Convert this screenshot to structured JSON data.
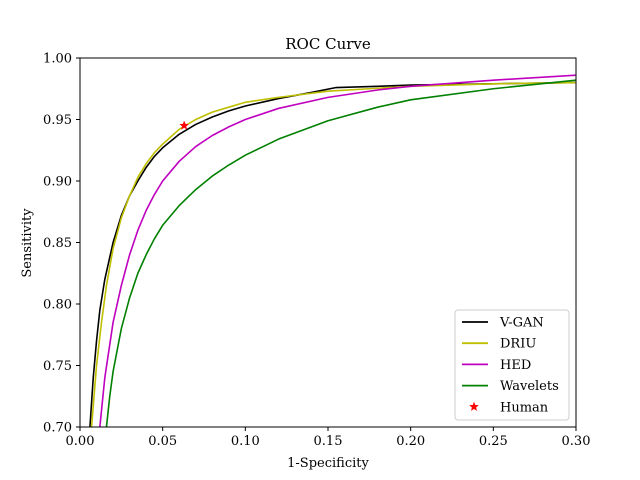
{
  "chart_data": {
    "type": "line",
    "title": "ROC Curve",
    "xlabel": "1-Specificity",
    "ylabel": "Sensitivity",
    "xlim": [
      0.0,
      0.3
    ],
    "ylim": [
      0.7,
      1.0
    ],
    "xticks": [
      0.0,
      0.05,
      0.1,
      0.15,
      0.2,
      0.25,
      0.3
    ],
    "yticks": [
      0.7,
      0.75,
      0.8,
      0.85,
      0.9,
      0.95,
      1.0
    ],
    "xtick_labels": [
      "0.00",
      "0.05",
      "0.10",
      "0.15",
      "0.20",
      "0.25",
      "0.30"
    ],
    "ytick_labels": [
      "0.70",
      "0.75",
      "0.80",
      "0.85",
      "0.90",
      "0.95",
      "1.00"
    ],
    "grid": false,
    "legend_position": "bottom-right",
    "series": [
      {
        "name": "V-GAN",
        "color": "#000000",
        "marker": "none",
        "x": [
          0.006,
          0.008,
          0.01,
          0.012,
          0.015,
          0.02,
          0.025,
          0.03,
          0.035,
          0.04,
          0.045,
          0.05,
          0.06,
          0.07,
          0.08,
          0.09,
          0.1,
          0.12,
          0.14,
          0.155,
          0.18,
          0.2,
          0.25,
          0.3
        ],
        "y": [
          0.7,
          0.74,
          0.77,
          0.795,
          0.82,
          0.85,
          0.872,
          0.888,
          0.9,
          0.911,
          0.92,
          0.927,
          0.938,
          0.946,
          0.952,
          0.957,
          0.961,
          0.967,
          0.972,
          0.976,
          0.977,
          0.978,
          0.979,
          0.98
        ]
      },
      {
        "name": "DRIU",
        "color": "#bfbf00",
        "marker": "none",
        "x": [
          0.007,
          0.01,
          0.013,
          0.016,
          0.02,
          0.025,
          0.03,
          0.035,
          0.04,
          0.045,
          0.05,
          0.06,
          0.07,
          0.08,
          0.09,
          0.1,
          0.12,
          0.15,
          0.2,
          0.25,
          0.3
        ],
        "y": [
          0.7,
          0.75,
          0.785,
          0.815,
          0.845,
          0.87,
          0.888,
          0.903,
          0.914,
          0.923,
          0.93,
          0.942,
          0.95,
          0.956,
          0.96,
          0.964,
          0.968,
          0.973,
          0.977,
          0.979,
          0.98
        ]
      },
      {
        "name": "HED",
        "color": "#bf00bf",
        "marker": "none",
        "x": [
          0.012,
          0.015,
          0.02,
          0.025,
          0.03,
          0.035,
          0.04,
          0.045,
          0.05,
          0.06,
          0.07,
          0.08,
          0.09,
          0.1,
          0.12,
          0.15,
          0.18,
          0.2,
          0.25,
          0.3
        ],
        "y": [
          0.7,
          0.74,
          0.785,
          0.815,
          0.84,
          0.86,
          0.876,
          0.889,
          0.9,
          0.916,
          0.928,
          0.937,
          0.944,
          0.95,
          0.959,
          0.968,
          0.974,
          0.977,
          0.982,
          0.986
        ]
      },
      {
        "name": "Wavelets",
        "color": "#008000",
        "marker": "none",
        "x": [
          0.016,
          0.018,
          0.02,
          0.025,
          0.03,
          0.035,
          0.04,
          0.045,
          0.05,
          0.06,
          0.07,
          0.08,
          0.09,
          0.1,
          0.12,
          0.15,
          0.18,
          0.2,
          0.25,
          0.3
        ],
        "y": [
          0.7,
          0.725,
          0.745,
          0.78,
          0.805,
          0.825,
          0.84,
          0.853,
          0.864,
          0.88,
          0.893,
          0.904,
          0.913,
          0.921,
          0.934,
          0.949,
          0.96,
          0.966,
          0.975,
          0.982
        ]
      },
      {
        "name": "Human",
        "color": "#ff0000",
        "marker": "star",
        "linestyle": "none",
        "x": [
          0.063
        ],
        "y": [
          0.945
        ]
      }
    ]
  }
}
